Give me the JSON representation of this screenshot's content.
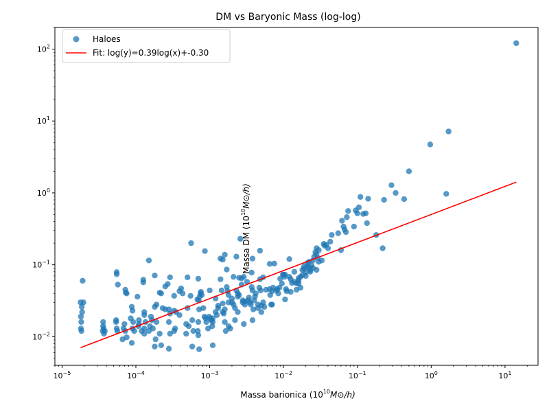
{
  "chart_data": {
    "type": "scatter",
    "title": "DM vs Baryonic Mass (log-log)",
    "xlabel": "Massa barionica (10",
    "xlabel_exp": "10",
    "xlabel_unit": "M⊙/h)",
    "ylabel": "Massa DM (10",
    "ylabel_exp": "10",
    "ylabel_unit": "M⊙/h)",
    "xscale": "log",
    "yscale": "log",
    "xlim": [
      8e-06,
      28
    ],
    "ylim": [
      0.004,
      200
    ],
    "x_ticks": [
      {
        "value": 1e-05,
        "base": "10",
        "exp": "−5"
      },
      {
        "value": 0.0001,
        "base": "10",
        "exp": "−4"
      },
      {
        "value": 0.001,
        "base": "10",
        "exp": "−3"
      },
      {
        "value": 0.01,
        "base": "10",
        "exp": "−2"
      },
      {
        "value": 0.1,
        "base": "10",
        "exp": "−1"
      },
      {
        "value": 1,
        "base": "10",
        "exp": "0"
      },
      {
        "value": 10,
        "base": "10",
        "exp": "1"
      }
    ],
    "y_ticks": [
      {
        "value": 0.01,
        "base": "10",
        "exp": "−2"
      },
      {
        "value": 0.1,
        "base": "10",
        "exp": "−1"
      },
      {
        "value": 1,
        "base": "10",
        "exp": "0"
      },
      {
        "value": 10,
        "base": "10",
        "exp": "1"
      },
      {
        "value": 100,
        "base": "10",
        "exp": "2"
      }
    ],
    "legend": {
      "position": "top-left",
      "entries": [
        {
          "label": "Haloes",
          "kind": "marker"
        },
        {
          "label": "Fit: log(y)=0.39log(x)+-0.30",
          "kind": "line"
        }
      ]
    },
    "colors": {
      "points": "#1f77b4",
      "fit": "#ff0000"
    },
    "fit": {
      "slope": 0.39,
      "intercept": -0.3,
      "x_range": [
        1.78e-05,
        14.2
      ]
    },
    "series": [
      {
        "name": "Haloes",
        "points": [
          [
            1.78e-05,
            0.03
          ],
          [
            1.85e-05,
            0.026
          ],
          [
            1.87e-05,
            0.022
          ],
          [
            1.8e-05,
            0.019
          ],
          [
            1.82e-05,
            0.016
          ],
          [
            1.8e-05,
            0.013
          ],
          [
            1.83e-05,
            0.012
          ],
          [
            1.95e-05,
            0.03
          ],
          [
            1.9e-05,
            0.06
          ],
          [
            3.6e-05,
            0.016
          ],
          [
            3.6e-05,
            0.014
          ],
          [
            3.65e-05,
            0.013
          ],
          [
            3.55e-05,
            0.012
          ],
          [
            3.7e-05,
            0.011
          ],
          [
            3.8e-05,
            0.012
          ],
          [
            5.5e-05,
            0.079
          ],
          [
            5.5e-05,
            0.074
          ],
          [
            5.7e-05,
            0.053
          ],
          [
            5.4e-05,
            0.017
          ],
          [
            5.4e-05,
            0.016
          ],
          [
            5.5e-05,
            0.013
          ],
          [
            5.6e-05,
            0.012
          ],
          [
            7.2e-05,
            0.045
          ],
          [
            7.3e-05,
            0.041
          ],
          [
            7.5e-05,
            0.04
          ],
          [
            7e-05,
            0.015
          ],
          [
            6.8e-05,
            0.013
          ],
          [
            7.2e-05,
            0.012
          ],
          [
            6.6e-05,
            0.0092
          ],
          [
            7.5e-05,
            0.0098
          ],
          [
            8.8e-05,
            0.026
          ],
          [
            9e-05,
            0.023
          ],
          [
            8.5e-05,
            0.018
          ],
          [
            9.2e-05,
            0.016
          ],
          [
            9e-05,
            0.013
          ],
          [
            9.5e-05,
            0.012
          ],
          [
            8.8e-05,
            0.0082
          ],
          [
            0.000105,
            0.036
          ],
          [
            0.00011,
            0.017
          ],
          [
            0.00011,
            0.015
          ],
          [
            0.000108,
            0.014
          ],
          [
            0.00012,
            0.012
          ],
          [
            0.000126,
            0.062
          ],
          [
            0.000126,
            0.057
          ],
          [
            0.00013,
            0.022
          ],
          [
            0.00013,
            0.02
          ],
          [
            0.000135,
            0.016
          ],
          [
            0.00013,
            0.013
          ],
          [
            0.00013,
            0.011
          ],
          [
            0.00015,
            0.115
          ],
          [
            0.00016,
            0.019
          ],
          [
            0.000165,
            0.017
          ],
          [
            0.000155,
            0.014
          ],
          [
            0.00015,
            0.012
          ],
          [
            0.00018,
            0.071
          ],
          [
            0.00019,
            0.028
          ],
          [
            0.00018,
            0.026
          ],
          [
            0.00019,
            0.016
          ],
          [
            0.00017,
            0.013
          ],
          [
            0.000185,
            0.0092
          ],
          [
            0.00018,
            0.0073
          ],
          [
            0.00021,
            0.041
          ],
          [
            0.00022,
            0.04
          ],
          [
            0.00023,
            0.025
          ],
          [
            0.00021,
            0.011
          ],
          [
            0.00022,
            0.0076
          ],
          [
            0.00025,
            0.05
          ],
          [
            0.00027,
            0.054
          ],
          [
            0.00029,
            0.067
          ],
          [
            0.00025,
            0.024
          ],
          [
            0.00028,
            0.024
          ],
          [
            0.00029,
            0.021
          ],
          [
            0.00028,
            0.016
          ],
          [
            0.00029,
            0.011
          ],
          [
            0.00028,
            0.0068
          ],
          [
            0.00033,
            0.037
          ],
          [
            0.00035,
            0.022
          ],
          [
            0.00033,
            0.023
          ],
          [
            0.00034,
            0.013
          ],
          [
            0.00033,
            0.012
          ],
          [
            0.00039,
            0.043
          ],
          [
            0.00041,
            0.047
          ],
          [
            0.00043,
            0.04
          ],
          [
            0.00039,
            0.02
          ],
          [
            0.0005,
            0.067
          ],
          [
            0.0005,
            0.025
          ],
          [
            0.00048,
            0.015
          ],
          [
            0.00052,
            0.014
          ],
          [
            0.00048,
            0.011
          ],
          [
            0.00055,
            0.037
          ],
          [
            0.00056,
            0.2
          ],
          [
            0.00058,
            0.017
          ],
          [
            0.0006,
            0.012
          ],
          [
            0.00058,
            0.0073
          ],
          [
            0.0007,
            0.064
          ],
          [
            0.00068,
            0.033
          ],
          [
            0.00071,
            0.032
          ],
          [
            0.00073,
            0.036
          ],
          [
            0.00075,
            0.04
          ],
          [
            0.00076,
            0.042
          ],
          [
            0.00078,
            0.038
          ],
          [
            0.00072,
            0.024
          ],
          [
            0.0007,
            0.016
          ],
          [
            0.00069,
            0.012
          ],
          [
            0.0007,
            0.0105
          ],
          [
            0.00072,
            0.0067
          ],
          [
            0.00086,
            0.155
          ],
          [
            0.00085,
            0.019
          ],
          [
            0.00088,
            0.018
          ],
          [
            0.0009,
            0.016
          ],
          [
            0.00095,
            0.013
          ],
          [
            0.00082,
            0.025
          ],
          [
            0.001,
            0.044
          ],
          [
            0.00098,
            0.019
          ],
          [
            0.00102,
            0.018
          ],
          [
            0.00105,
            0.017
          ],
          [
            0.0011,
            0.018
          ],
          [
            0.0011,
            0.016
          ],
          [
            0.00108,
            0.014
          ],
          [
            0.0011,
            0.0076
          ],
          [
            0.0012,
            0.034
          ],
          [
            0.0012,
            0.022
          ],
          [
            0.00125,
            0.02
          ],
          [
            0.0013,
            0.027
          ],
          [
            0.0013,
            0.025
          ],
          [
            0.0014,
            0.122
          ],
          [
            0.0015,
            0.118
          ],
          [
            0.0016,
            0.138
          ],
          [
            0.0014,
            0.063
          ],
          [
            0.00145,
            0.044
          ],
          [
            0.0015,
            0.029
          ],
          [
            0.0015,
            0.022
          ],
          [
            0.00155,
            0.021
          ],
          [
            0.0016,
            0.024
          ],
          [
            0.0016,
            0.016
          ],
          [
            0.00165,
            0.012
          ],
          [
            0.0017,
            0.086
          ],
          [
            0.0017,
            0.049
          ],
          [
            0.00175,
            0.043
          ],
          [
            0.0018,
            0.038
          ],
          [
            0.0018,
            0.03
          ],
          [
            0.0018,
            0.014
          ],
          [
            0.0019,
            0.013
          ],
          [
            0.0021,
            0.068
          ],
          [
            0.002,
            0.034
          ],
          [
            0.002,
            0.03
          ],
          [
            0.0021,
            0.028
          ],
          [
            0.0022,
            0.025
          ],
          [
            0.0022,
            0.017
          ],
          [
            0.0023,
            0.13
          ],
          [
            0.0023,
            0.044
          ],
          [
            0.0024,
            0.04
          ],
          [
            0.0025,
            0.066
          ],
          [
            0.0025,
            0.038
          ],
          [
            0.0024,
            0.022
          ],
          [
            0.0024,
            0.036
          ],
          [
            0.0026,
            0.23
          ],
          [
            0.0027,
            0.065
          ],
          [
            0.0027,
            0.053
          ],
          [
            0.0028,
            0.032
          ],
          [
            0.0028,
            0.03
          ],
          [
            0.0029,
            0.068
          ],
          [
            0.003,
            0.031
          ],
          [
            0.003,
            0.028
          ],
          [
            0.0029,
            0.015
          ],
          [
            0.0032,
            0.058
          ],
          [
            0.0033,
            0.032
          ],
          [
            0.0034,
            0.035
          ],
          [
            0.0035,
            0.03
          ],
          [
            0.0036,
            0.028
          ],
          [
            0.0038,
            0.122
          ],
          [
            0.0037,
            0.078
          ],
          [
            0.0037,
            0.049
          ],
          [
            0.0038,
            0.044
          ],
          [
            0.0039,
            0.024
          ],
          [
            0.004,
            0.032
          ],
          [
            0.0041,
            0.036
          ],
          [
            0.0042,
            0.04
          ],
          [
            0.0038,
            0.017
          ],
          [
            0.0045,
            0.028
          ],
          [
            0.0045,
            0.025
          ],
          [
            0.0047,
            0.048
          ],
          [
            0.0048,
            0.157
          ],
          [
            0.0048,
            0.063
          ],
          [
            0.0049,
            0.044
          ],
          [
            0.005,
            0.027
          ],
          [
            0.005,
            0.022
          ],
          [
            0.0053,
            0.067
          ],
          [
            0.0053,
            0.03
          ],
          [
            0.0055,
            0.026
          ],
          [
            0.0058,
            0.045
          ],
          [
            0.0065,
            0.103
          ],
          [
            0.0065,
            0.046
          ],
          [
            0.0066,
            0.038
          ],
          [
            0.007,
            0.043
          ],
          [
            0.0068,
            0.028
          ],
          [
            0.007,
            0.028
          ],
          [
            0.0072,
            0.048
          ],
          [
            0.0075,
            0.104
          ],
          [
            0.008,
            0.044
          ],
          [
            0.0082,
            0.046
          ],
          [
            0.0085,
            0.04
          ],
          [
            0.0088,
            0.048
          ],
          [
            0.009,
            0.064
          ],
          [
            0.0095,
            0.055
          ],
          [
            0.0098,
            0.073
          ],
          [
            0.01,
            0.073
          ],
          [
            0.0103,
            0.068
          ],
          [
            0.0105,
            0.073
          ],
          [
            0.0108,
            0.046
          ],
          [
            0.011,
            0.043
          ],
          [
            0.0105,
            0.033
          ],
          [
            0.012,
            0.12
          ],
          [
            0.012,
            0.068
          ],
          [
            0.0125,
            0.063
          ],
          [
            0.013,
            0.056
          ],
          [
            0.0125,
            0.042
          ],
          [
            0.014,
            0.08
          ],
          [
            0.014,
            0.058
          ],
          [
            0.015,
            0.055
          ],
          [
            0.015,
            0.045
          ],
          [
            0.016,
            0.065
          ],
          [
            0.016,
            0.06
          ],
          [
            0.016,
            0.055
          ],
          [
            0.017,
            0.068
          ],
          [
            0.017,
            0.048
          ],
          [
            0.018,
            0.072
          ],
          [
            0.018,
            0.085
          ],
          [
            0.019,
            0.095
          ],
          [
            0.019,
            0.088
          ],
          [
            0.02,
            0.079
          ],
          [
            0.02,
            0.07
          ],
          [
            0.021,
            0.105
          ],
          [
            0.021,
            0.095
          ],
          [
            0.022,
            0.11
          ],
          [
            0.022,
            0.092
          ],
          [
            0.023,
            0.085
          ],
          [
            0.023,
            0.08
          ],
          [
            0.024,
            0.098
          ],
          [
            0.025,
            0.115
          ],
          [
            0.025,
            0.09
          ],
          [
            0.026,
            0.13
          ],
          [
            0.027,
            0.15
          ],
          [
            0.028,
            0.17
          ],
          [
            0.028,
            0.14
          ],
          [
            0.029,
            0.125
          ],
          [
            0.03,
            0.16
          ],
          [
            0.03,
            0.11
          ],
          [
            0.028,
            0.085
          ],
          [
            0.033,
            0.115
          ],
          [
            0.035,
            0.195
          ],
          [
            0.036,
            0.185
          ],
          [
            0.038,
            0.19
          ],
          [
            0.04,
            0.17
          ],
          [
            0.043,
            0.21
          ],
          [
            0.045,
            0.26
          ],
          [
            0.055,
            0.275
          ],
          [
            0.06,
            0.16
          ],
          [
            0.062,
            0.41
          ],
          [
            0.065,
            0.34
          ],
          [
            0.067,
            0.31
          ],
          [
            0.07,
            0.285
          ],
          [
            0.072,
            0.46
          ],
          [
            0.075,
            0.56
          ],
          [
            0.09,
            0.34
          ],
          [
            0.095,
            0.57
          ],
          [
            0.1,
            0.52
          ],
          [
            0.105,
            0.63
          ],
          [
            0.11,
            0.88
          ],
          [
            0.12,
            0.51
          ],
          [
            0.13,
            0.52
          ],
          [
            0.135,
            0.38
          ],
          [
            0.14,
            0.83
          ],
          [
            0.18,
            0.26
          ],
          [
            0.22,
            0.17
          ],
          [
            0.23,
            0.8
          ],
          [
            0.29,
            1.28
          ],
          [
            0.33,
            1.0
          ],
          [
            0.43,
            0.82
          ],
          [
            0.5,
            2.0
          ],
          [
            0.97,
            4.72
          ],
          [
            1.6,
            0.97
          ],
          [
            1.72,
            7.15
          ],
          [
            14.2,
            121
          ]
        ]
      }
    ]
  }
}
